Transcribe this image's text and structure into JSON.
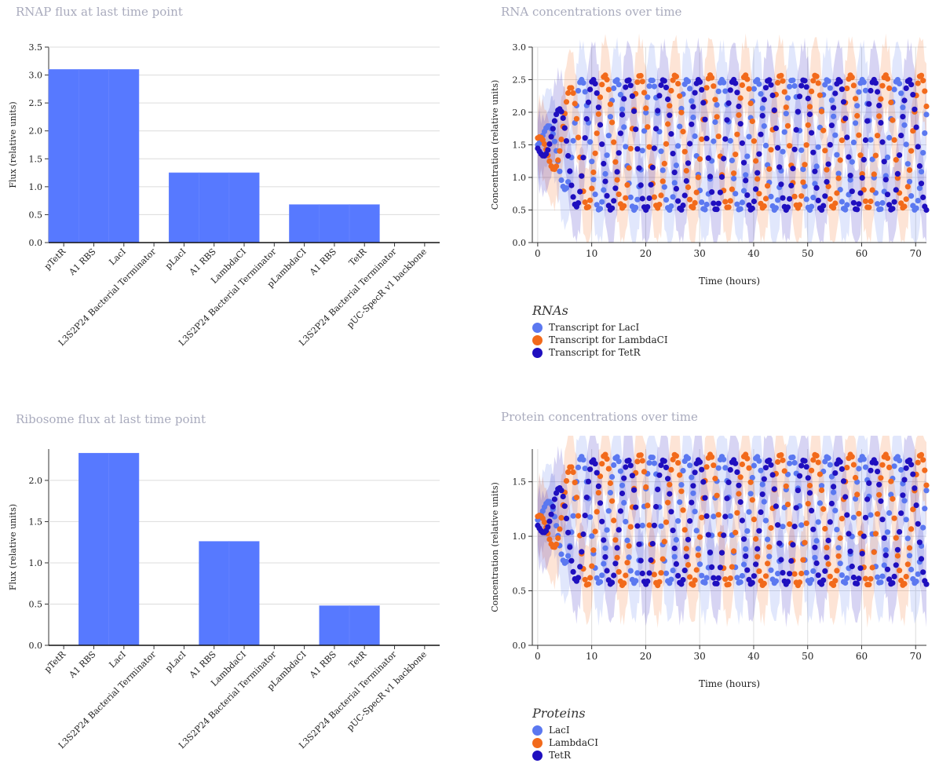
{
  "colors": {
    "accent": "#5779ff",
    "lacI": "#5b78f0",
    "lambdaCI": "#f26a1b",
    "tetR": "#1f0fbf",
    "title": "#a9abbd"
  },
  "panels": {
    "rnap": {
      "title": "RNAP flux at last time point"
    },
    "ribo": {
      "title": "Ribosome flux at last time point"
    },
    "rna": {
      "title": "RNA concentrations over time",
      "legend_title": "RNAs",
      "legend": [
        "Transcript for LacI",
        "Transcript for LambdaCI",
        "Transcript for TetR"
      ]
    },
    "protein": {
      "title": "Protein concentrations over time",
      "legend_title": "Proteins",
      "legend": [
        "LacI",
        "LambdaCI",
        "TetR"
      ]
    }
  },
  "chart_data": [
    {
      "type": "bar",
      "title": "RNAP flux at last time point",
      "ylabel": "Flux (relative units)",
      "xlabel": "",
      "ylim": [
        0,
        3.5
      ],
      "yticks": [
        "0.0",
        "0.5",
        "1.0",
        "1.5",
        "2.0",
        "2.5",
        "3.0",
        "3.5"
      ],
      "categories": [
        "pTetR",
        "A1 RBS",
        "LacI",
        "L3S2P24 Bacterial Terminator",
        "pLacI",
        "A1 RBS",
        "LambdaCI",
        "L3S2P24 Bacterial Terminator",
        "pLambdaCI",
        "A1 RBS",
        "TetR",
        "L3S2P24 Bacterial Terminator",
        "pUC-SpecR v1 backbone"
      ],
      "values": [
        3.1,
        3.1,
        3.1,
        0,
        1.25,
        1.25,
        1.25,
        0,
        0.68,
        0.68,
        0.68,
        0,
        0
      ],
      "grid": true
    },
    {
      "type": "bar",
      "title": "Ribosome flux at last time point",
      "ylabel": "Flux (relative units)",
      "xlabel": "",
      "ylim": [
        0,
        2.38
      ],
      "yticks": [
        "0.0",
        "0.5",
        "1.0",
        "1.5",
        "2.0"
      ],
      "categories": [
        "pTetR",
        "A1 RBS",
        "LacI",
        "L3S2P24 Bacterial Terminator",
        "pLacI",
        "A1 RBS",
        "LambdaCI",
        "L3S2P24 Bacterial Terminator",
        "pLambdaCI",
        "A1 RBS",
        "TetR",
        "L3S2P24 Bacterial Terminator",
        "pUC-SpecR v1 backbone"
      ],
      "values": [
        0,
        2.33,
        2.33,
        0,
        0,
        1.26,
        1.26,
        0,
        0,
        0.48,
        0.48,
        0,
        0
      ],
      "grid": true
    },
    {
      "type": "scatter",
      "title": "RNA concentrations over time",
      "xlabel": "Time (hours)",
      "ylabel": "Concentration (relative units)",
      "xlim": [
        -1,
        72
      ],
      "ylim": [
        0,
        3.0
      ],
      "xticks": [
        "0",
        "10",
        "20",
        "30",
        "40",
        "50",
        "60",
        "70"
      ],
      "yticks": [
        "0.0",
        "0.5",
        "1.0",
        "1.5",
        "2.0",
        "2.5",
        "3.0"
      ],
      "legend_title": "RNAs",
      "grid": true,
      "series": [
        {
          "name": "Transcript for LacI",
          "color": "#5b78f0",
          "mean": 1.5,
          "amp": 1.0,
          "period": 6.5,
          "phase": 0.0
        },
        {
          "name": "Transcript for LambdaCI",
          "color": "#f26a1b",
          "mean": 1.55,
          "amp": 1.02,
          "period": 6.5,
          "phase": 2.1
        },
        {
          "name": "Transcript for TetR",
          "color": "#1f0fbf",
          "mean": 1.5,
          "amp": 1.0,
          "period": 6.5,
          "phase": 4.2
        }
      ]
    },
    {
      "type": "scatter",
      "title": "Protein concentrations over time",
      "xlabel": "Time (hours)",
      "ylabel": "Concentration (relative units)",
      "xlim": [
        -1,
        72
      ],
      "ylim": [
        0,
        1.8
      ],
      "xticks": [
        "0",
        "10",
        "20",
        "30",
        "40",
        "50",
        "60",
        "70"
      ],
      "yticks": [
        "0.0",
        "0.5",
        "1.0",
        "1.5"
      ],
      "legend_title": "Proteins",
      "grid": true,
      "series": [
        {
          "name": "LacI",
          "color": "#5b78f0",
          "mean": 1.15,
          "amp": 0.58,
          "period": 6.5,
          "phase": 0.0
        },
        {
          "name": "LambdaCI",
          "color": "#f26a1b",
          "mean": 1.15,
          "amp": 0.6,
          "period": 6.5,
          "phase": 2.1
        },
        {
          "name": "TetR",
          "color": "#1f0fbf",
          "mean": 1.13,
          "amp": 0.57,
          "period": 6.5,
          "phase": 4.2
        }
      ]
    }
  ]
}
